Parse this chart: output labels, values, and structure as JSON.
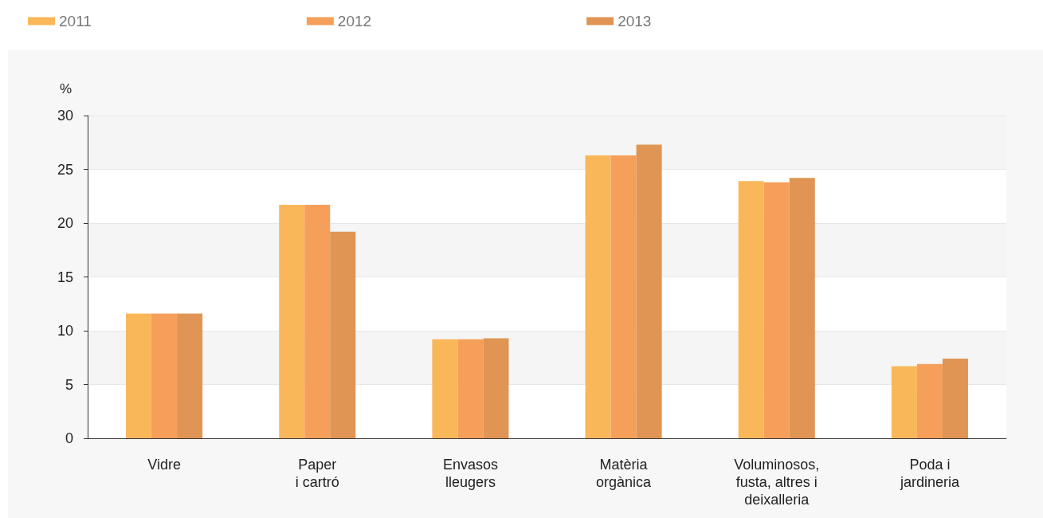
{
  "chart_data": {
    "type": "bar",
    "ylabel": "%",
    "categories": [
      "Vidre",
      "Paper\ni cartró",
      "Envasos\nlleugers",
      "Matèria\norgànica",
      "Voluminosos,\nfusta, altres i\ndeixalleria",
      "Poda i\njardineria"
    ],
    "series": [
      {
        "name": "2011",
        "color": "#f9b75a",
        "values": [
          11.6,
          21.7,
          9.2,
          26.3,
          23.9,
          6.7
        ]
      },
      {
        "name": "2012",
        "color": "#f59f5a",
        "values": [
          11.6,
          21.7,
          9.2,
          26.3,
          23.8,
          6.9
        ]
      },
      {
        "name": "2013",
        "color": "#e09555",
        "values": [
          11.6,
          19.2,
          9.3,
          27.3,
          24.2,
          7.4
        ]
      }
    ],
    "ylim": [
      0,
      30
    ],
    "yticks": [
      0,
      5,
      10,
      15,
      20,
      25,
      30
    ],
    "grid": "y",
    "legend": "top left"
  }
}
